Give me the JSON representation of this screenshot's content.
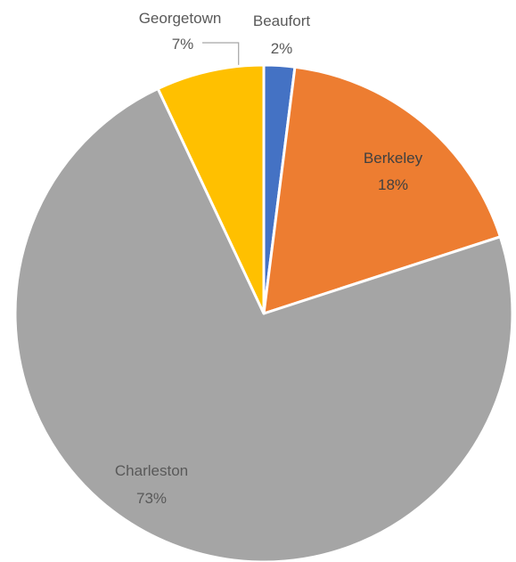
{
  "chart_data": {
    "type": "pie",
    "categories": [
      "Beaufort",
      "Berkeley",
      "Charleston",
      "Georgetown"
    ],
    "values": [
      2,
      18,
      73,
      7
    ],
    "value_labels": [
      "2%",
      "18%",
      "73%",
      "7%"
    ],
    "colors": [
      "#4472C4",
      "#ED7D31",
      "#A5A5A5",
      "#FFC000"
    ],
    "title": "",
    "start_angle": "12 o'clock",
    "direction": "clockwise",
    "legend": "none"
  }
}
